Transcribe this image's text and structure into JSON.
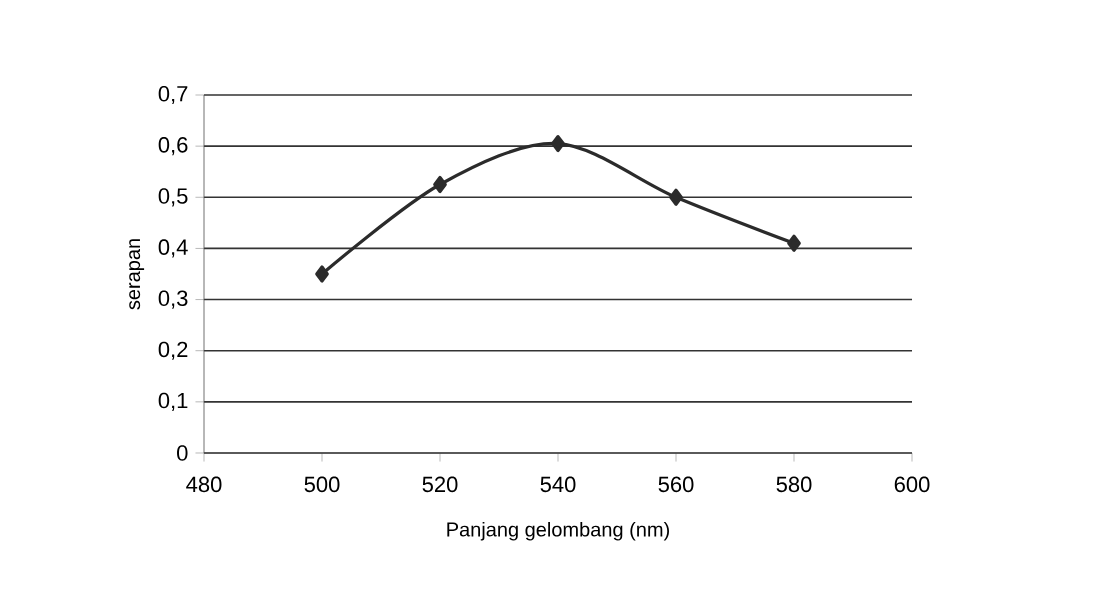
{
  "chart_data": {
    "type": "line",
    "xlabel": "Panjang gelombang (nm)",
    "ylabel": "serapan",
    "x": [
      500,
      520,
      540,
      560,
      580
    ],
    "series": [
      {
        "color": "#2b2b2b",
        "values": [
          0.35,
          0.525,
          0.605,
          0.5,
          0.41
        ]
      }
    ],
    "xlim": [
      480,
      600
    ],
    "xticks": [
      480,
      500,
      520,
      540,
      560,
      580,
      600
    ],
    "ylim": [
      0,
      0.7
    ],
    "yticks": [
      0,
      {
        "value": 0.1,
        "label": "0,1"
      },
      {
        "value": 0.2,
        "label": "0,2"
      },
      {
        "value": 0.3,
        "label": "0,3"
      },
      {
        "value": 0.4,
        "label": "0,4"
      },
      {
        "value": 0.5,
        "label": "0,5"
      },
      {
        "value": 0.6,
        "label": "0,6"
      },
      {
        "value": 0.7,
        "label": "0,7"
      }
    ],
    "grid": "y",
    "marker": "diamond",
    "line_style": "solid"
  }
}
